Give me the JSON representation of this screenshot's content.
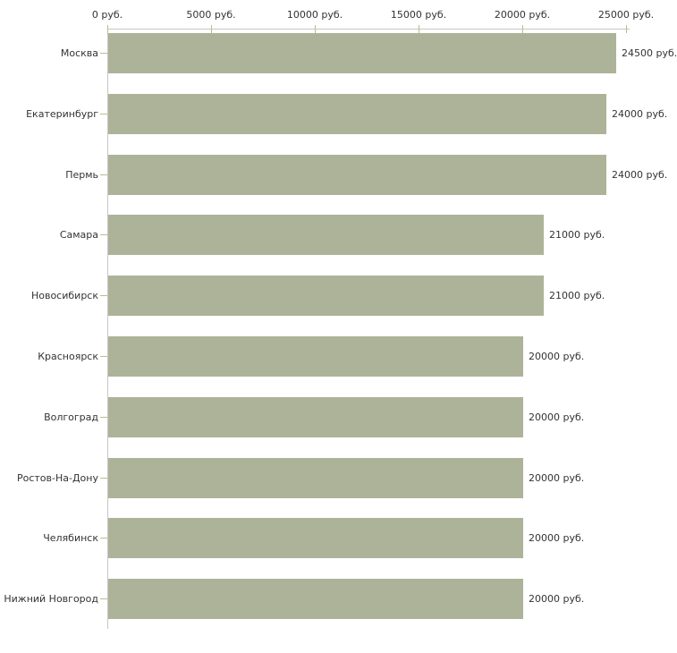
{
  "chart_data": {
    "type": "bar",
    "orientation": "horizontal",
    "title": "",
    "xlabel": "",
    "ylabel": "",
    "unit": "руб.",
    "xlim": [
      0,
      25000
    ],
    "grid": false,
    "legend": false,
    "categories": [
      "Москва",
      "Екатеринбург",
      "Пермь",
      "Самара",
      "Новосибирск",
      "Красноярск",
      "Волгоград",
      "Ростов-На-Дону",
      "Челябинск",
      "Нижний Новгород"
    ],
    "values": [
      24500,
      24000,
      24000,
      21000,
      21000,
      20000,
      20000,
      20000,
      20000,
      20000
    ],
    "value_labels": [
      "24500 руб.",
      "24000 руб.",
      "24000 руб.",
      "21000 руб.",
      "21000 руб.",
      "20000 руб.",
      "20000 руб.",
      "20000 руб.",
      "20000 руб.",
      "20000 руб."
    ],
    "x_ticks": [
      0,
      5000,
      10000,
      15000,
      20000,
      25000
    ],
    "x_tick_labels": [
      "0 руб.",
      "5000 руб.",
      "10000 руб.",
      "15000 руб.",
      "20000 руб.",
      "25000 руб."
    ],
    "colors": {
      "bar": "#adb399",
      "axis": "#c6c6c6",
      "tick": "#bcbc8c",
      "text": "#333333",
      "background": "#ffffff"
    }
  }
}
